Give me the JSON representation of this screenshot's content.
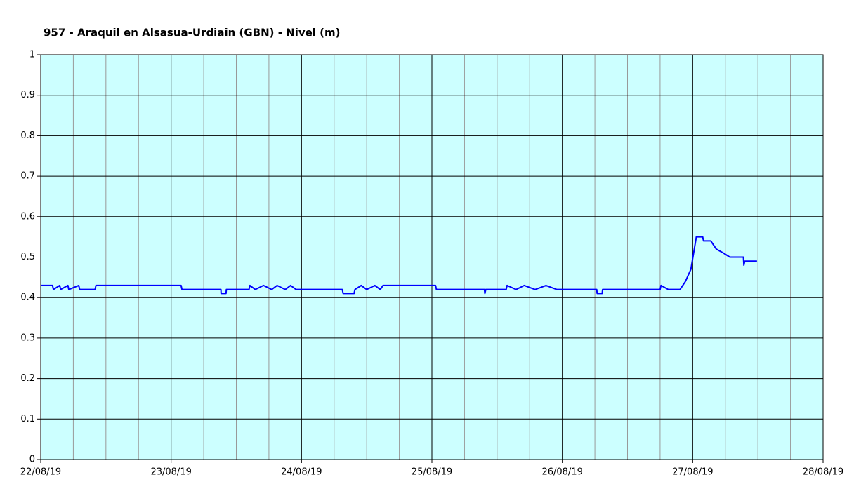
{
  "chart_data": {
    "type": "line",
    "title": "957 - Araquil en Alsasua-Urdiain (GBN) - Nivel (m)",
    "x": [
      "2019-08-22T00:00",
      "2019-08-22T02:10",
      "2019-08-22T02:20",
      "2019-08-22T03:30",
      "2019-08-22T03:40",
      "2019-08-22T05:00",
      "2019-08-22T05:10",
      "2019-08-22T07:00",
      "2019-08-22T07:10",
      "2019-08-22T10:00",
      "2019-08-22T10:10",
      "2019-08-23T01:50",
      "2019-08-23T02:00",
      "2019-08-23T09:10",
      "2019-08-23T09:12",
      "2019-08-23T10:06",
      "2019-08-23T10:10",
      "2019-08-23T14:20",
      "2019-08-23T14:30",
      "2019-08-23T15:30",
      "2019-08-23T17:00",
      "2019-08-23T18:30",
      "2019-08-23T19:30",
      "2019-08-23T21:00",
      "2019-08-23T22:00",
      "2019-08-23T23:00",
      "2019-08-24T07:30",
      "2019-08-24T07:40",
      "2019-08-24T09:40",
      "2019-08-24T09:50",
      "2019-08-24T11:00",
      "2019-08-24T12:00",
      "2019-08-24T13:30",
      "2019-08-24T14:30",
      "2019-08-24T15:00",
      "2019-08-25T00:40",
      "2019-08-25T00:50",
      "2019-08-25T09:40",
      "2019-08-25T09:45",
      "2019-08-25T09:55",
      "2019-08-25T13:40",
      "2019-08-25T13:50",
      "2019-08-25T15:30",
      "2019-08-25T17:00",
      "2019-08-25T19:00",
      "2019-08-25T21:00",
      "2019-08-25T23:00",
      "2019-08-26T06:20",
      "2019-08-26T06:25",
      "2019-08-26T07:20",
      "2019-08-26T07:25",
      "2019-08-26T18:00",
      "2019-08-26T18:10",
      "2019-08-26T19:30",
      "2019-08-26T21:40",
      "2019-08-26T22:40",
      "2019-08-26T23:40",
      "2019-08-27T00:40",
      "2019-08-27T01:50",
      "2019-08-27T02:00",
      "2019-08-27T03:20",
      "2019-08-27T04:20",
      "2019-08-27T05:40",
      "2019-08-27T06:50",
      "2019-08-27T09:20",
      "2019-08-27T09:25",
      "2019-08-27T09:35",
      "2019-08-27T11:50"
    ],
    "series": [
      {
        "color": "#0000ff",
        "values": [
          0.43,
          0.43,
          0.42,
          0.43,
          0.42,
          0.43,
          0.42,
          0.43,
          0.42,
          0.42,
          0.43,
          0.43,
          0.42,
          0.42,
          0.41,
          0.41,
          0.42,
          0.42,
          0.43,
          0.42,
          0.43,
          0.42,
          0.43,
          0.42,
          0.43,
          0.42,
          0.42,
          0.41,
          0.41,
          0.42,
          0.43,
          0.42,
          0.43,
          0.42,
          0.43,
          0.43,
          0.42,
          0.42,
          0.41,
          0.42,
          0.42,
          0.43,
          0.42,
          0.43,
          0.42,
          0.43,
          0.42,
          0.42,
          0.41,
          0.41,
          0.42,
          0.42,
          0.43,
          0.42,
          0.42,
          0.44,
          0.47,
          0.55,
          0.55,
          0.54,
          0.54,
          0.52,
          0.51,
          0.5,
          0.5,
          0.48,
          0.49,
          0.49
        ]
      }
    ],
    "xlim": [
      "2019-08-22T00:00",
      "2019-08-28T00:00"
    ],
    "xticks": [
      {
        "value": "2019-08-22T00:00",
        "label": "22/08/19"
      },
      {
        "value": "2019-08-23T00:00",
        "label": "23/08/19"
      },
      {
        "value": "2019-08-24T00:00",
        "label": "24/08/19"
      },
      {
        "value": "2019-08-25T00:00",
        "label": "25/08/19"
      },
      {
        "value": "2019-08-26T00:00",
        "label": "26/08/19"
      },
      {
        "value": "2019-08-27T00:00",
        "label": "27/08/19"
      },
      {
        "value": "2019-08-28T00:00",
        "label": "28/08/19"
      }
    ],
    "ylim": [
      0,
      1
    ],
    "yticks": [
      0,
      0.1,
      0.2,
      0.3,
      0.4,
      0.5,
      0.6,
      0.7,
      0.8,
      0.9,
      1
    ],
    "grid": true,
    "background": "#ccffff"
  }
}
